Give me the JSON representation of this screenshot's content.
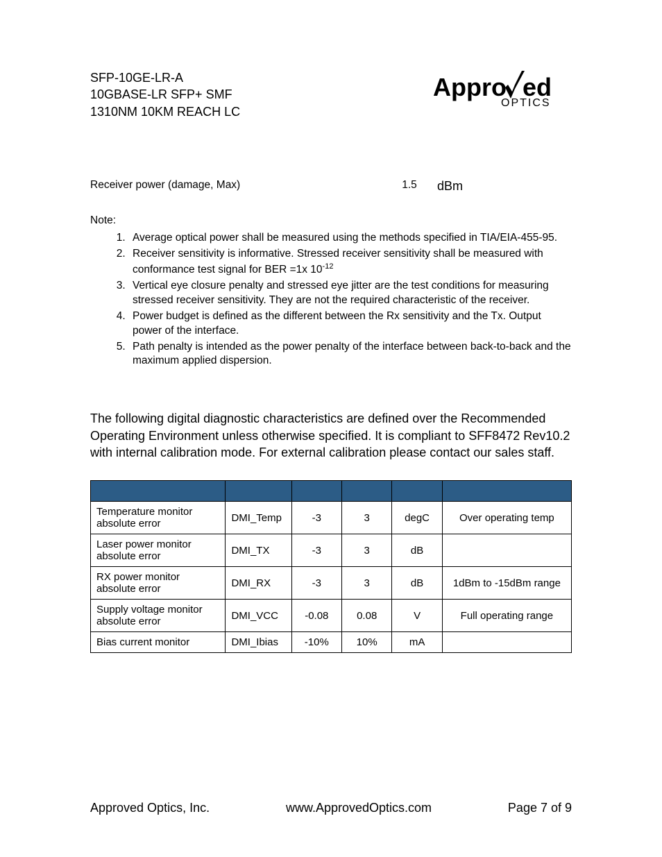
{
  "header": {
    "line1": "SFP-10GE-LR-A",
    "line2": "10GBASE-LR SFP+ SMF",
    "line3": "1310NM 10KM REACH LC"
  },
  "logo": {
    "text_main": "Appro",
    "text_sub": "OPTICS",
    "color": "#000000"
  },
  "spec": {
    "label": "Receiver power (damage, Max)",
    "value": "1.5",
    "unit": "dBm"
  },
  "notes": {
    "label": "Note:",
    "items": [
      "Average optical power shall be measured using the methods specified in TIA/EIA-455-95.",
      "Receiver sensitivity is informative. Stressed receiver sensitivity shall be measured with conformance test signal for BER =1x 10",
      "Vertical eye closure penalty and stressed eye jitter are the test conditions for measuring stressed receiver sensitivity. They are not the required characteristic of the receiver.",
      "Power budget is defined as the different between the Rx sensitivity and the Tx. Output power of the interface.",
      "Path penalty is intended as the power penalty of the interface between back-to-back and the maximum applied dispersion."
    ],
    "note2_sup": "-12"
  },
  "paragraph": "The following digital diagnostic characteristics are defined over the Recommended Operating Environment unless otherwise specified. It is compliant to SFF8472 Rev10.2 with internal calibration mode. For external calibration please contact our sales staff.",
  "table": {
    "header_bg": "#2c5c86",
    "border_color": "#000000",
    "columns": [
      "",
      "",
      "",
      "",
      "",
      ""
    ],
    "rows": [
      [
        "Temperature monitor absolute error",
        "DMI_Temp",
        "-3",
        "3",
        "degC",
        "Over operating temp"
      ],
      [
        "Laser power monitor absolute error",
        "DMI_TX",
        "-3",
        "3",
        "dB",
        ""
      ],
      [
        "RX power monitor absolute error",
        "DMI_RX",
        "-3",
        "3",
        "dB",
        "1dBm to -15dBm range"
      ],
      [
        "Supply voltage monitor absolute error",
        "DMI_VCC",
        "-0.08",
        "0.08",
        "V",
        "Full operating range"
      ],
      [
        "Bias current monitor",
        "DMI_Ibias",
        "-10%",
        "10%",
        "mA",
        ""
      ]
    ]
  },
  "footer": {
    "left": "Approved Optics, Inc.",
    "center": "www.ApprovedOptics.com",
    "right": "Page 7 of 9"
  }
}
